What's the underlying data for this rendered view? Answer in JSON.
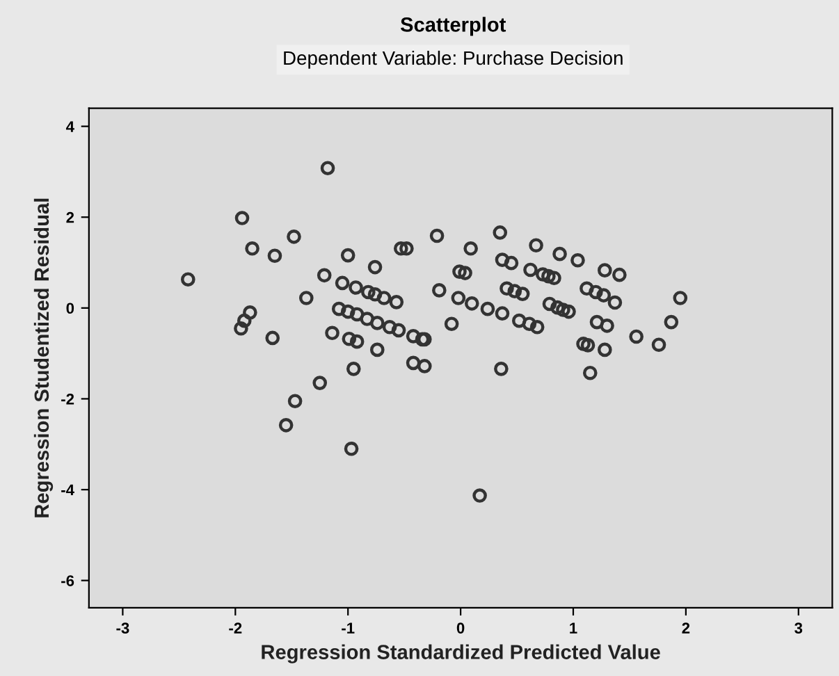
{
  "chart_data": {
    "type": "scatter",
    "title": "Scatterplot",
    "subtitle": "Dependent Variable: Purchase Decision",
    "xlabel": "Regression Standardized Predicted Value",
    "ylabel": "Regression Studentized Residual",
    "xlim": [
      -3.3,
      3.3
    ],
    "ylim": [
      -6.6,
      4.4
    ],
    "xticks": [
      -3,
      -2,
      -1,
      0,
      1,
      2,
      3
    ],
    "yticks": [
      -6,
      -4,
      -2,
      0,
      2,
      4
    ],
    "grid": false,
    "legend": false,
    "marker": "circle",
    "series": [
      {
        "color": "#333333",
        "x": [
          -1.18,
          -2.42,
          -1.94,
          -1.48,
          -1.85,
          -1.65,
          -1.0,
          -0.53,
          -0.48,
          -0.21,
          -0.76,
          -1.21,
          -1.05,
          -0.93,
          -0.82,
          -0.76,
          -0.68,
          -0.57,
          -0.01,
          -0.19,
          -0.02,
          -1.37,
          -1.87,
          -1.92,
          -1.95,
          -1.08,
          -1.0,
          -0.92,
          -0.83,
          -0.74,
          -0.63,
          -0.55,
          -0.42,
          -0.34,
          -0.32,
          -0.08,
          -1.67,
          -1.14,
          -0.99,
          -0.92,
          -0.74,
          -0.42,
          -0.32,
          -0.95,
          -1.25,
          0.35,
          0.09,
          0.67,
          0.88,
          1.04,
          0.37,
          0.45,
          0.04,
          0.62,
          0.73,
          0.78,
          0.83,
          1.28,
          1.41,
          0.41,
          0.48,
          0.55,
          0.1,
          0.24,
          0.37,
          0.79,
          0.86,
          0.91,
          0.96,
          1.12,
          1.2,
          1.27,
          1.37,
          0.52,
          0.61,
          0.68,
          1.21,
          1.3,
          1.87,
          1.56,
          1.76,
          1.09,
          1.13,
          1.28,
          1.95,
          0.36,
          1.15,
          -1.47,
          -1.55,
          -0.97,
          0.17
        ],
        "values": [
          3.08,
          0.63,
          1.98,
          1.57,
          1.31,
          1.15,
          1.16,
          1.31,
          1.31,
          1.59,
          0.9,
          0.72,
          0.55,
          0.45,
          0.35,
          0.3,
          0.22,
          0.13,
          0.8,
          0.39,
          0.22,
          0.22,
          -0.1,
          -0.28,
          -0.45,
          -0.02,
          -0.08,
          -0.14,
          -0.24,
          -0.33,
          -0.42,
          -0.49,
          -0.62,
          -0.69,
          -0.69,
          -0.35,
          -0.66,
          -0.55,
          -0.68,
          -0.74,
          -0.92,
          -1.21,
          -1.28,
          -1.34,
          -1.65,
          1.66,
          1.31,
          1.38,
          1.19,
          1.05,
          1.06,
          0.99,
          0.77,
          0.84,
          0.74,
          0.7,
          0.66,
          0.83,
          0.73,
          0.43,
          0.37,
          0.31,
          0.1,
          -0.02,
          -0.12,
          0.09,
          0.01,
          -0.04,
          -0.08,
          0.43,
          0.35,
          0.28,
          0.12,
          -0.28,
          -0.35,
          -0.42,
          -0.31,
          -0.39,
          -0.31,
          -0.63,
          -0.81,
          -0.79,
          -0.82,
          -0.92,
          0.22,
          -1.34,
          -1.43,
          -2.05,
          -2.58,
          -3.1,
          -4.13
        ]
      }
    ]
  }
}
